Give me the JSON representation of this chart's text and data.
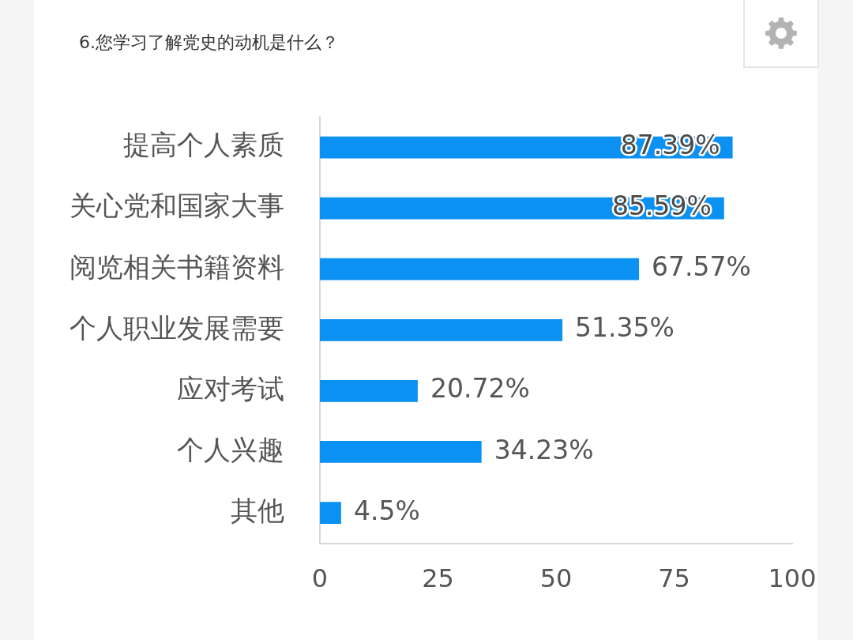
{
  "chart_data": {
    "type": "bar",
    "orientation": "horizontal",
    "title": "6.您学习了解党史的动机是什么？",
    "categories": [
      "提高个人素质",
      "关心党和国家大事",
      "阅览相关书籍资料",
      "个人职业发展需要",
      "应对考试",
      "个人兴趣",
      "其他"
    ],
    "values": [
      87.39,
      85.59,
      67.57,
      51.35,
      20.72,
      34.23,
      4.5
    ],
    "value_labels": [
      "87.39%",
      "85.59%",
      "67.57%",
      "51.35%",
      "20.72%",
      "34.23%",
      "4.5%"
    ],
    "color": "#0b91f2",
    "xlim": [
      0,
      100
    ],
    "xticks": [
      0,
      25,
      50,
      75,
      100
    ]
  }
}
